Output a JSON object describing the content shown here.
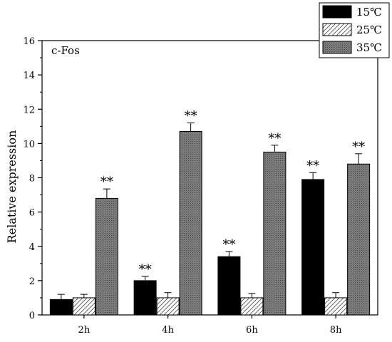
{
  "chart_data": {
    "type": "bar",
    "title": "c-Fos",
    "xlabel": "",
    "ylabel": "Relative expression",
    "categories": [
      "2h",
      "4h",
      "6h",
      "8h"
    ],
    "ylim": [
      0,
      16
    ],
    "yticks": [
      0,
      2,
      4,
      6,
      8,
      10,
      12,
      14,
      16
    ],
    "grid": false,
    "legend_position": "top-right",
    "series": [
      {
        "name": "15℃",
        "fill": "solid",
        "color": "#000000",
        "values": [
          0.9,
          2.0,
          3.4,
          7.9
        ],
        "errors": [
          0.3,
          0.25,
          0.3,
          0.4
        ],
        "significance": [
          "",
          "**",
          "**",
          "**"
        ]
      },
      {
        "name": "25℃",
        "fill": "hatch",
        "color": "#ffffff",
        "values": [
          1.0,
          1.0,
          1.0,
          1.0
        ],
        "errors": [
          0.2,
          0.3,
          0.25,
          0.3
        ],
        "significance": [
          "",
          "",
          "",
          ""
        ]
      },
      {
        "name": "35℃",
        "fill": "dotted",
        "color": "#6e6e6e",
        "values": [
          6.8,
          10.7,
          9.5,
          8.8
        ],
        "errors": [
          0.55,
          0.5,
          0.4,
          0.6
        ],
        "significance": [
          "**",
          "**",
          "**",
          "**"
        ]
      }
    ]
  }
}
